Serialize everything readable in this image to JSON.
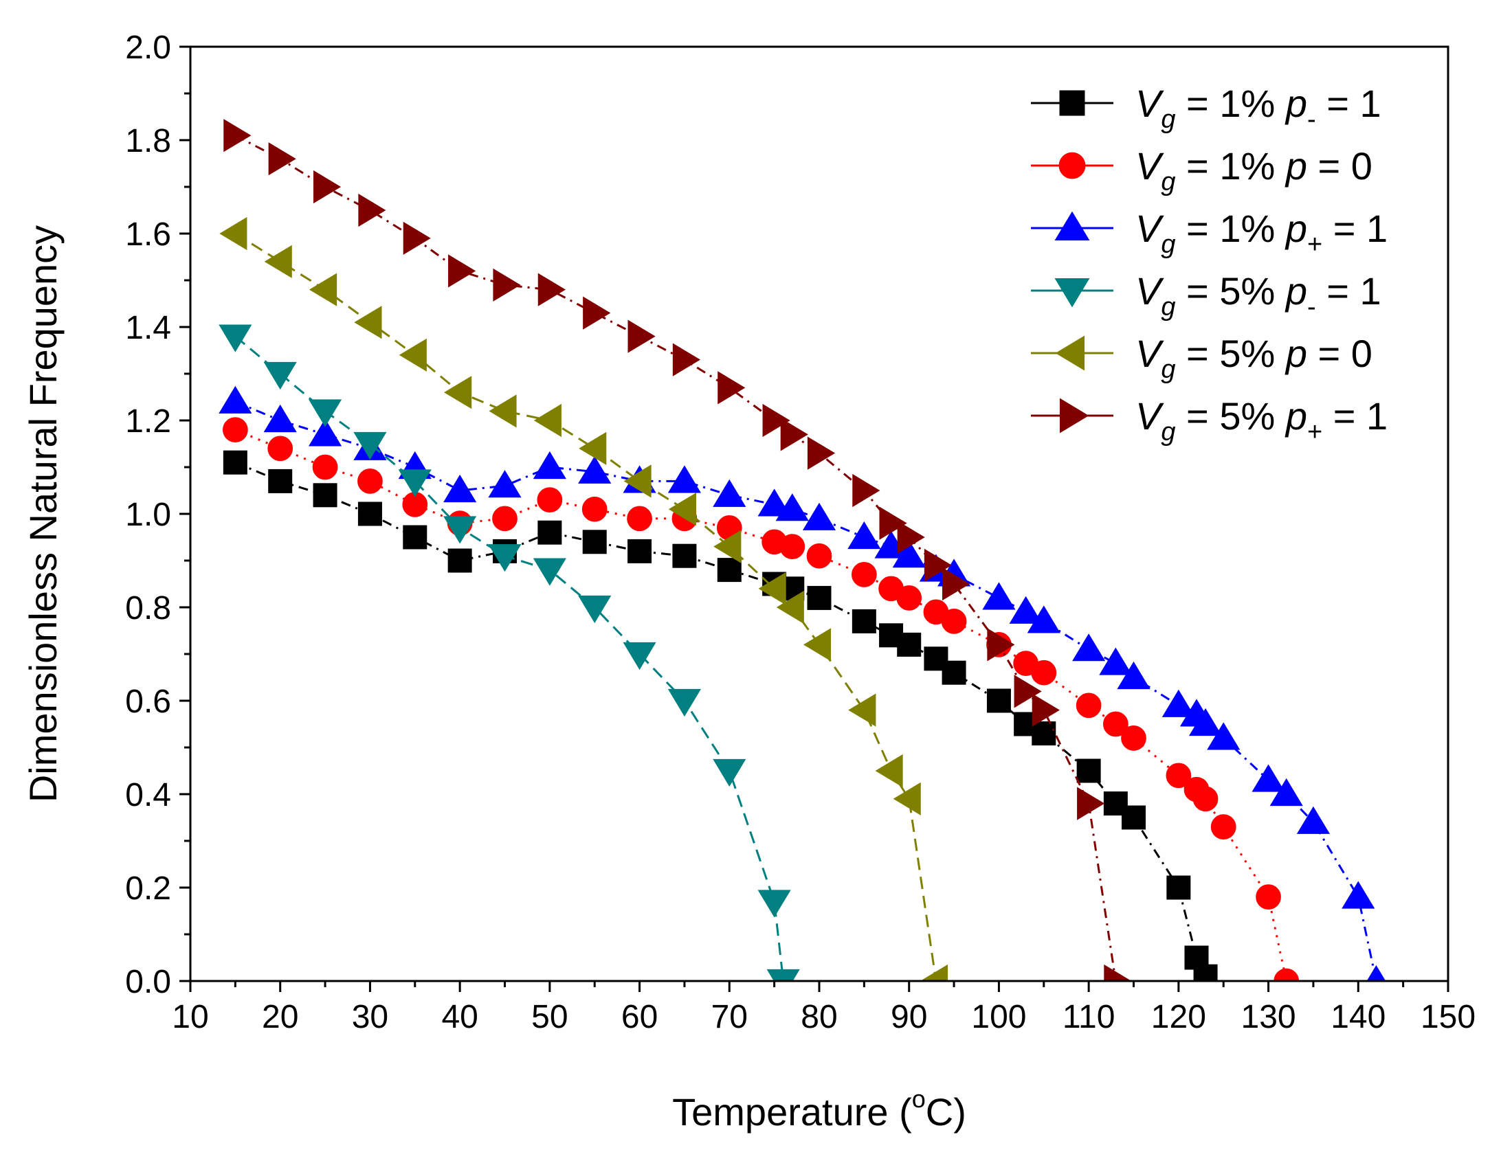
{
  "chart_data": {
    "type": "line",
    "xlabel": "Temperature (",
    "xlabel_sup": "o",
    "xlabel_end": "C)",
    "ylabel": "Dimensionless Natural Frequency",
    "xlim": [
      10,
      150
    ],
    "ylim": [
      0.0,
      2.0
    ],
    "xticks": [
      "10",
      "20",
      "30",
      "40",
      "50",
      "60",
      "70",
      "80",
      "90",
      "100",
      "110",
      "120",
      "130",
      "140",
      "150"
    ],
    "yticks": [
      "0.0",
      "0.2",
      "0.4",
      "0.6",
      "0.8",
      "1.0",
      "1.2",
      "1.4",
      "1.6",
      "1.8",
      "2.0"
    ],
    "legend_position": "top-right",
    "legend_p": "p",
    "legend_g": "g",
    "series": [
      {
        "name": "Vg = 1% p- = 1",
        "legend_V": "V",
        "legend_mid": " = 1%  ",
        "legend_p_sub": "-",
        "legend_end": " = 1",
        "color": "#000000",
        "marker": "square",
        "linestyle": "dashdot",
        "x": [
          15,
          20,
          25,
          30,
          35,
          40,
          45,
          50,
          55,
          60,
          65,
          70,
          75,
          77,
          80,
          85,
          88,
          90,
          93,
          95,
          100,
          103,
          105,
          110,
          113,
          115,
          120,
          122,
          123
        ],
        "y": [
          1.11,
          1.07,
          1.04,
          1.0,
          0.95,
          0.9,
          0.92,
          0.96,
          0.94,
          0.92,
          0.91,
          0.88,
          0.85,
          0.84,
          0.82,
          0.77,
          0.74,
          0.72,
          0.69,
          0.66,
          0.6,
          0.55,
          0.53,
          0.45,
          0.38,
          0.35,
          0.2,
          0.05,
          0.01
        ]
      },
      {
        "name": "Vg = 1% p = 0",
        "legend_V": "V",
        "legend_mid": " = 1%  ",
        "legend_p_sub": "",
        "legend_end": " = 0",
        "color": "#ff0000",
        "marker": "circle",
        "linestyle": "dot",
        "x": [
          15,
          20,
          25,
          30,
          35,
          40,
          45,
          50,
          55,
          60,
          65,
          70,
          75,
          77,
          80,
          85,
          88,
          90,
          93,
          95,
          100,
          103,
          105,
          110,
          113,
          115,
          120,
          122,
          123,
          125,
          130,
          132
        ],
        "y": [
          1.18,
          1.14,
          1.1,
          1.07,
          1.02,
          0.98,
          0.99,
          1.03,
          1.01,
          0.99,
          0.99,
          0.97,
          0.94,
          0.93,
          0.91,
          0.87,
          0.84,
          0.82,
          0.79,
          0.77,
          0.72,
          0.68,
          0.66,
          0.59,
          0.55,
          0.52,
          0.44,
          0.41,
          0.39,
          0.33,
          0.18,
          0.0
        ]
      },
      {
        "name": "Vg = 1% p+ = 1",
        "legend_V": "V",
        "legend_mid": " = 1%  ",
        "legend_p_sub": "+",
        "legend_end": " = 1",
        "color": "#0000ff",
        "marker": "triangle-up",
        "linestyle": "dashdot",
        "x": [
          15,
          20,
          25,
          30,
          35,
          40,
          45,
          50,
          55,
          60,
          65,
          70,
          75,
          77,
          80,
          85,
          88,
          90,
          93,
          95,
          100,
          103,
          105,
          110,
          113,
          115,
          120,
          122,
          123,
          125,
          130,
          132,
          135,
          140,
          142
        ],
        "y": [
          1.24,
          1.2,
          1.17,
          1.14,
          1.1,
          1.05,
          1.06,
          1.1,
          1.09,
          1.07,
          1.07,
          1.04,
          1.02,
          1.01,
          0.99,
          0.95,
          0.93,
          0.91,
          0.88,
          0.87,
          0.82,
          0.79,
          0.77,
          0.71,
          0.68,
          0.65,
          0.59,
          0.57,
          0.55,
          0.52,
          0.43,
          0.4,
          0.34,
          0.18,
          0.0
        ]
      },
      {
        "name": "Vg = 5% p- = 1",
        "legend_V": "V",
        "legend_mid": " = 5%  ",
        "legend_p_sub": "-",
        "legend_end": " = 1",
        "color": "#008080",
        "marker": "triangle-down",
        "linestyle": "dash",
        "x": [
          15,
          20,
          25,
          30,
          35,
          40,
          45,
          50,
          55,
          60,
          65,
          70,
          75,
          76
        ],
        "y": [
          1.38,
          1.3,
          1.22,
          1.15,
          1.07,
          0.97,
          0.91,
          0.88,
          0.8,
          0.7,
          0.6,
          0.45,
          0.17,
          0.0
        ]
      },
      {
        "name": "Vg = 5% p = 0",
        "legend_V": "V",
        "legend_mid": " = 5%  ",
        "legend_p_sub": "",
        "legend_end": " = 0",
        "color": "#808000",
        "marker": "triangle-left",
        "linestyle": "dash",
        "x": [
          15,
          20,
          25,
          30,
          35,
          40,
          45,
          50,
          55,
          60,
          65,
          70,
          75,
          77,
          80,
          85,
          88,
          90,
          93
        ],
        "y": [
          1.6,
          1.54,
          1.48,
          1.41,
          1.34,
          1.26,
          1.22,
          1.2,
          1.14,
          1.07,
          1.01,
          0.93,
          0.84,
          0.8,
          0.72,
          0.58,
          0.45,
          0.39,
          0.0
        ]
      },
      {
        "name": "Vg = 5% p+ = 1",
        "legend_V": "V",
        "legend_mid": " = 5%  ",
        "legend_p_sub": "+",
        "legend_end": " = 1",
        "color": "#800000",
        "marker": "triangle-right",
        "linestyle": "dashdot",
        "x": [
          15,
          20,
          25,
          30,
          35,
          40,
          45,
          50,
          55,
          60,
          65,
          70,
          75,
          77,
          80,
          85,
          88,
          90,
          93,
          95,
          100,
          103,
          105,
          110,
          113
        ],
        "y": [
          1.81,
          1.76,
          1.7,
          1.65,
          1.59,
          1.52,
          1.49,
          1.48,
          1.43,
          1.38,
          1.33,
          1.27,
          1.2,
          1.17,
          1.13,
          1.05,
          0.98,
          0.95,
          0.89,
          0.85,
          0.72,
          0.62,
          0.58,
          0.38,
          0.0
        ]
      }
    ]
  }
}
